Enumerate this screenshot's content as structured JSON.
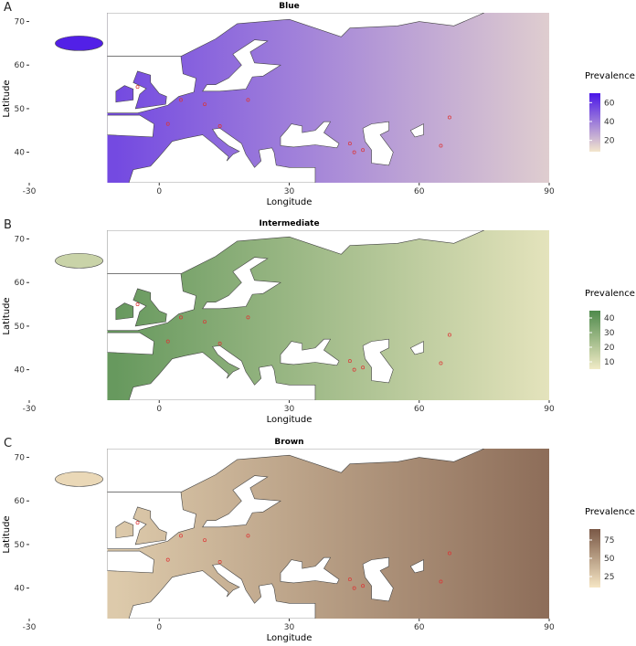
{
  "panels": [
    {
      "letter": "A",
      "title": "Blue",
      "x_label": "Longitude",
      "y_label": "Latitude",
      "legend_title": "Prevalence",
      "legend_ticks": [
        20,
        40,
        60
      ],
      "legend_lim": [
        8,
        70
      ],
      "colors": [
        "#f3e6cc",
        "#4a16e8"
      ]
    },
    {
      "letter": "B",
      "title": "Intermediate",
      "x_label": "Longitude",
      "y_label": "Latitude",
      "legend_title": "Prevalence",
      "legend_ticks": [
        10,
        20,
        30,
        40
      ],
      "legend_lim": [
        5,
        45
      ],
      "colors": [
        "#f1ebc6",
        "#4f8a4c"
      ]
    },
    {
      "letter": "C",
      "title": "Brown",
      "x_label": "Longitude",
      "y_label": "Latitude",
      "legend_title": "Prevalence",
      "legend_ticks": [
        25,
        50,
        75
      ],
      "legend_lim": [
        10,
        90
      ],
      "colors": [
        "#f6e6c4",
        "#7a5846"
      ]
    }
  ],
  "xlim": [
    -30,
    90
  ],
  "ylim": [
    33,
    72
  ],
  "xticks": [
    -30,
    0,
    30,
    60,
    90
  ],
  "yticks": [
    40,
    50,
    60,
    70
  ],
  "sites": [
    [
      2,
      46.5
    ],
    [
      10.5,
      51
    ],
    [
      20.5,
      52
    ],
    [
      14,
      46
    ],
    [
      -5,
      55
    ],
    [
      5,
      52
    ],
    [
      44,
      42
    ],
    [
      45,
      40
    ],
    [
      47,
      40.5
    ],
    [
      67,
      48
    ],
    [
      65,
      41.5
    ]
  ]
}
